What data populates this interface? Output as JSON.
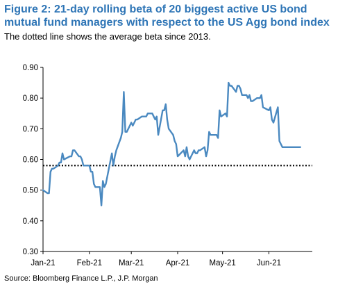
{
  "header": {
    "title": "Figure 2: 21-day rolling beta of 20 biggest active US bond mutual fund managers with respect to the US Agg bond index",
    "subtitle": "The dotted line shows the average beta since 2013."
  },
  "footer": {
    "source": "Source: Bloomberg Finance L.P., J.P. Morgan"
  },
  "chart_data": {
    "type": "line",
    "title": "Figure 2: 21-day rolling beta of 20 biggest active US bond mutual fund managers with respect to the US Agg bond index",
    "xlabel": "",
    "ylabel": "",
    "ylim": [
      0.3,
      0.9
    ],
    "yticks": [
      "0.30",
      "0.40",
      "0.50",
      "0.60",
      "0.70",
      "0.80",
      "0.90"
    ],
    "xticks": [
      "Jan-21",
      "Feb-21",
      "Mar-21",
      "Apr-21",
      "May-21",
      "Jun-21"
    ],
    "grid": false,
    "legend": "none",
    "colors": {
      "series": "#4a89c0",
      "reference": "#000000",
      "title": "#2e75b6"
    },
    "reference_line": {
      "value": 0.58,
      "style": "dotted"
    },
    "series": [
      {
        "x": [
          "2021-01-01",
          "2021-01-04",
          "2021-01-05",
          "2021-01-06",
          "2021-01-07",
          "2021-01-08",
          "2021-01-11",
          "2021-01-12",
          "2021-01-13",
          "2021-01-14",
          "2021-01-15",
          "2021-01-19",
          "2021-01-20",
          "2021-01-21",
          "2021-01-22",
          "2021-01-25",
          "2021-01-26",
          "2021-01-27",
          "2021-01-28",
          "2021-01-29",
          "2021-02-01",
          "2021-02-02",
          "2021-02-03",
          "2021-02-04",
          "2021-02-05",
          "2021-02-08",
          "2021-02-09",
          "2021-02-10",
          "2021-02-11",
          "2021-02-12",
          "2021-02-16",
          "2021-02-17",
          "2021-02-18",
          "2021-02-19",
          "2021-02-22",
          "2021-02-23",
          "2021-02-24",
          "2021-02-25",
          "2021-02-26",
          "2021-03-01",
          "2021-03-02",
          "2021-03-03",
          "2021-03-04",
          "2021-03-05",
          "2021-03-08",
          "2021-03-09",
          "2021-03-10",
          "2021-03-11",
          "2021-03-12",
          "2021-03-15",
          "2021-03-16",
          "2021-03-17",
          "2021-03-18",
          "2021-03-19",
          "2021-03-22",
          "2021-03-23",
          "2021-03-24",
          "2021-03-25",
          "2021-03-26",
          "2021-03-29",
          "2021-03-30",
          "2021-03-31",
          "2021-04-01",
          "2021-04-05",
          "2021-04-06",
          "2021-04-07",
          "2021-04-08",
          "2021-04-09",
          "2021-04-12",
          "2021-04-13",
          "2021-04-14",
          "2021-04-15",
          "2021-04-16",
          "2021-04-19",
          "2021-04-20",
          "2021-04-21",
          "2021-04-22",
          "2021-04-23",
          "2021-04-26",
          "2021-04-27",
          "2021-04-28",
          "2021-04-29",
          "2021-04-30",
          "2021-05-03",
          "2021-05-04",
          "2021-05-05",
          "2021-05-06",
          "2021-05-07",
          "2021-05-10",
          "2021-05-11",
          "2021-05-12",
          "2021-05-13",
          "2021-05-14",
          "2021-05-17",
          "2021-05-18",
          "2021-05-19",
          "2021-05-20",
          "2021-05-21",
          "2021-05-24",
          "2021-05-25",
          "2021-05-26",
          "2021-05-27",
          "2021-05-28",
          "2021-06-01",
          "2021-06-02",
          "2021-06-03",
          "2021-06-04",
          "2021-06-07",
          "2021-06-08",
          "2021-06-09",
          "2021-06-10",
          "2021-06-11",
          "2021-06-14",
          "2021-06-15",
          "2021-06-16",
          "2021-06-17",
          "2021-06-18",
          "2021-06-21",
          "2021-06-22"
        ],
        "values": [
          0.5,
          0.49,
          0.49,
          0.56,
          0.57,
          0.57,
          0.58,
          0.59,
          0.59,
          0.62,
          0.6,
          0.61,
          0.61,
          0.63,
          0.63,
          0.61,
          0.61,
          0.6,
          0.58,
          0.58,
          0.58,
          0.56,
          0.56,
          0.52,
          0.51,
          0.51,
          0.45,
          0.53,
          0.51,
          0.52,
          0.62,
          0.58,
          0.61,
          0.63,
          0.67,
          0.69,
          0.82,
          0.69,
          0.69,
          0.72,
          0.71,
          0.72,
          0.73,
          0.73,
          0.74,
          0.74,
          0.74,
          0.74,
          0.75,
          0.75,
          0.74,
          0.73,
          0.74,
          0.68,
          0.76,
          0.76,
          0.78,
          0.73,
          0.7,
          0.68,
          0.66,
          0.65,
          0.61,
          0.63,
          0.61,
          0.64,
          0.61,
          0.6,
          0.63,
          0.62,
          0.62,
          0.63,
          0.63,
          0.64,
          0.61,
          0.63,
          0.69,
          0.68,
          0.68,
          0.68,
          0.67,
          0.76,
          0.74,
          0.75,
          0.74,
          0.85,
          0.84,
          0.84,
          0.82,
          0.84,
          0.84,
          0.83,
          0.81,
          0.81,
          0.8,
          0.81,
          0.79,
          0.79,
          0.8,
          0.8,
          0.8,
          0.81,
          0.77,
          0.76,
          0.77,
          0.73,
          0.72,
          0.77,
          0.66,
          0.65,
          0.64,
          0.64,
          0.64,
          0.64,
          0.64,
          0.64,
          0.64,
          0.64,
          0.64
        ]
      }
    ]
  }
}
